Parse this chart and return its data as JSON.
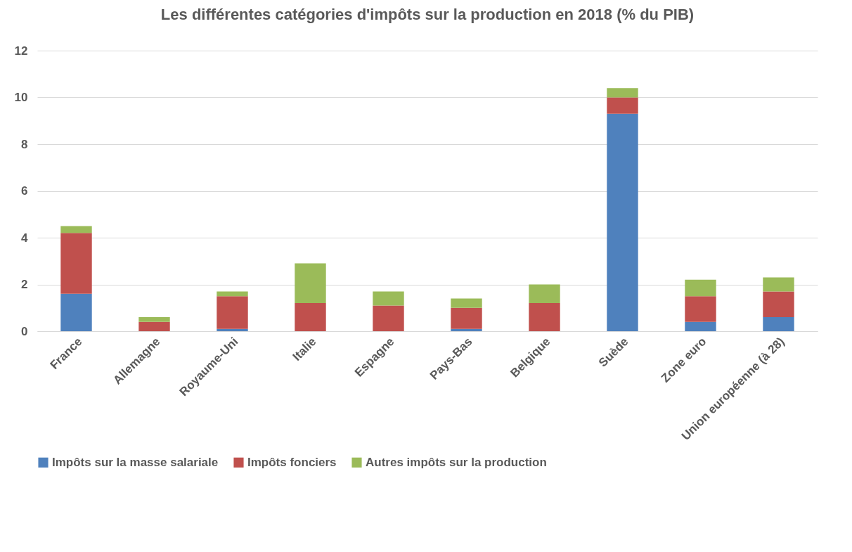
{
  "chart_data": {
    "type": "bar",
    "title": "Les différentes catégories d'impôts sur la production en 2018 (% du PIB)",
    "stacked": true,
    "categories": [
      "France",
      "Allemagne",
      "Royaume-Uni",
      "Italie",
      "Espagne",
      "Pays-Bas",
      "Belgique",
      "Suède",
      "Zone euro",
      "Union européenne (à 28)"
    ],
    "series": [
      {
        "name": "Impôts sur la masse salariale",
        "color": "#4f81bd",
        "values": [
          1.6,
          0,
          0.1,
          0,
          0,
          0.1,
          0,
          9.3,
          0.4,
          0.6
        ]
      },
      {
        "name": "Impôts fonciers",
        "color": "#c0504d",
        "values": [
          2.6,
          0.4,
          1.4,
          1.2,
          1.1,
          0.9,
          1.2,
          0.7,
          1.1,
          1.1
        ]
      },
      {
        "name": "Autres impôts sur la production",
        "color": "#9bbb59",
        "values": [
          0.3,
          0.2,
          0.2,
          1.7,
          0.6,
          0.4,
          0.8,
          0.4,
          0.7,
          0.6
        ]
      }
    ],
    "ylim": [
      0,
      12
    ],
    "yticks": [
      0,
      2,
      4,
      6,
      8,
      10,
      12
    ],
    "grid": "y",
    "legend": "bottom"
  }
}
